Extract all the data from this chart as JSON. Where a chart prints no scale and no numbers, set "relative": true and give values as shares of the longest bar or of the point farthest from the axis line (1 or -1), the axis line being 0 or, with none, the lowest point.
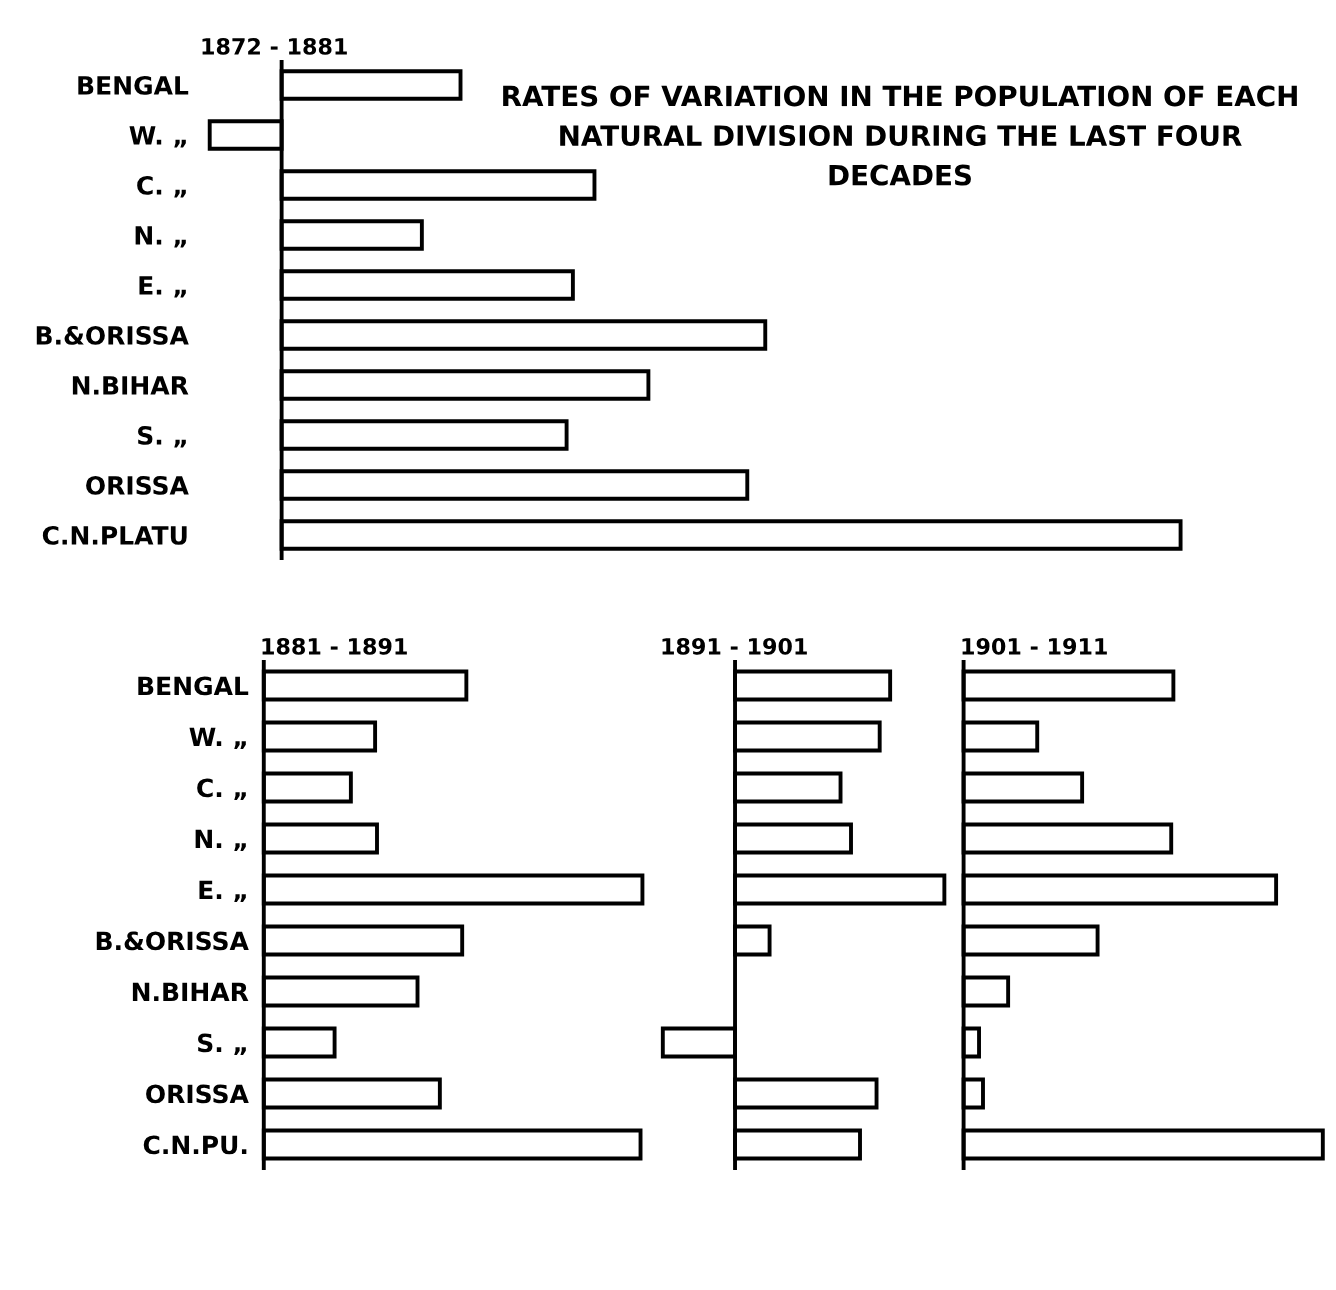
{
  "chart_data": [
    {
      "type": "bar",
      "orientation": "horizontal",
      "relative": true,
      "title": "1872 - 1881",
      "tick_labels": "y",
      "color": "#ffffff",
      "annotations": [
        "RATES OF VARIATION IN THE POPULATION OF EACH NATURAL DIVISION DURING THE LAST FOUR DECADES"
      ],
      "categories": [
        "BENGAL",
        "W. „",
        "C. „",
        "N. „",
        "E. „",
        "B.&ORISSA",
        "N.BIHAR",
        "S. „",
        "ORISSA",
        "C.N.PLATU"
      ],
      "values": [
        0.199,
        -0.08,
        0.348,
        0.156,
        0.324,
        0.538,
        0.408,
        0.317,
        0.518,
        1
      ]
    },
    {
      "type": "bar",
      "orientation": "horizontal",
      "relative": true,
      "title": "1881 - 1891",
      "tick_labels": "y",
      "color": "#ffffff",
      "categories": [
        "BENGAL",
        "W. „",
        "C. „",
        "N. „",
        "E. „",
        "B.&ORISSA",
        "N.BIHAR",
        "S. „",
        "ORISSA",
        "C.N.PU."
      ],
      "values": [
        0.535,
        0.294,
        0.23,
        0.299,
        1,
        0.524,
        0.406,
        0.187,
        0.465,
        0.995
      ]
    },
    {
      "type": "bar",
      "orientation": "horizontal",
      "relative": true,
      "title": "1891 - 1901",
      "color": "#ffffff",
      "categories": [
        null,
        null,
        null,
        null,
        null,
        null,
        null,
        null,
        null,
        null
      ],
      "values": [
        0.741,
        0.691,
        0.504,
        0.554,
        1,
        0.165,
        null,
        -0.345,
        0.676,
        0.597
      ]
    },
    {
      "type": "bar",
      "orientation": "horizontal",
      "relative": true,
      "title": "1901 - 1911",
      "color": "#ffffff",
      "categories": [
        null,
        null,
        null,
        null,
        null,
        null,
        null,
        null,
        null,
        null
      ],
      "values": [
        0.584,
        0.205,
        0.33,
        0.578,
        0.87,
        0.373,
        0.124,
        0.043,
        0.054,
        1
      ]
    }
  ]
}
